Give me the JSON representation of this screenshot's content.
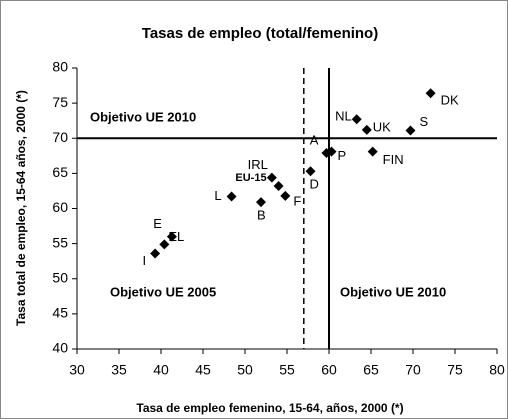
{
  "chart_data": {
    "type": "scatter",
    "title": "Tasas de empleo (total/femenino)",
    "x_label": "Tasa de empleo femenino, 15-64, años, 2000 (*)",
    "y_label": "Tasa total de empleo, 15-64 años, 2000 (*)",
    "xlim": [
      30,
      80
    ],
    "xticks": [
      30,
      35,
      40,
      45,
      50,
      55,
      60,
      65,
      70,
      75,
      80
    ],
    "ylim": [
      40,
      80
    ],
    "yticks": [
      40,
      45,
      50,
      55,
      60,
      65,
      70,
      75,
      80
    ],
    "color": "#000000",
    "series": [
      {
        "name": null,
        "labels": [
          "DK",
          "S",
          "FIN",
          "NL",
          "UK",
          "P",
          "A",
          "D",
          "IRL",
          "EU-15",
          "F",
          "L",
          "B",
          "E",
          "EL",
          "I"
        ],
        "x": [
          72.1,
          69.7,
          65.2,
          63.3,
          64.5,
          60.3,
          59.7,
          57.8,
          53.2,
          54.0,
          54.8,
          48.4,
          51.9,
          41.3,
          40.4,
          39.3
        ],
        "values": [
          76.4,
          71.1,
          68.1,
          72.7,
          71.2,
          68.1,
          67.9,
          65.3,
          64.4,
          63.2,
          61.8,
          61.7,
          60.9,
          56.0,
          54.9,
          53.6
        ]
      }
    ],
    "reference_lines": [
      {
        "axis": "y",
        "value": 70,
        "style": "solid"
      },
      {
        "axis": "x",
        "value": 60,
        "style": "solid"
      },
      {
        "axis": "x",
        "value": 57,
        "style": "dashed"
      }
    ],
    "annotations": [
      "Objetivo UE 2010",
      "Objetivo UE 2005",
      "Objetivo UE 2010"
    ]
  }
}
